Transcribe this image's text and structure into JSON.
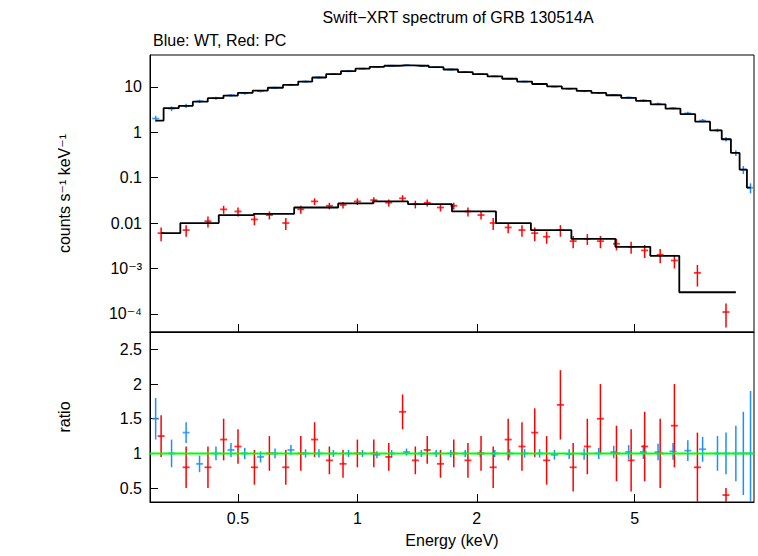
{
  "chart_data": [
    {
      "type": "scatter",
      "title": "Swift−XRT spectrum of GRB 130514A",
      "subtitle": "Blue: WT, Red: PC",
      "ylabel": "counts s⁻¹ keV⁻¹",
      "log": true,
      "grid": false,
      "tick_labels": "y",
      "xlim": [
        0.3,
        10
      ],
      "ylim": [
        4e-05,
        50
      ],
      "xticks": [
        0.5,
        1,
        2,
        5
      ],
      "yticks": [
        {
          "value": 0.0001,
          "label": "10⁻⁴"
        },
        {
          "value": 0.001,
          "label": "10⁻³"
        },
        0.01,
        0.1,
        1,
        10
      ],
      "series": [
        {
          "type": "scatter",
          "marker": "cross",
          "color": "#1e8fff",
          "x": [
            0.31,
            0.34,
            0.37,
            0.4,
            0.44,
            0.48,
            0.52,
            0.57,
            0.62,
            0.68,
            0.74,
            0.8,
            0.87,
            0.95,
            1.03,
            1.12,
            1.22,
            1.33,
            1.45,
            1.58,
            1.72,
            1.87,
            2.04,
            2.22,
            2.42,
            2.64,
            2.88,
            3.14,
            3.42,
            3.73,
            4.06,
            4.43,
            4.83,
            5.26,
            5.73,
            6.25,
            6.81,
            7.42,
            8.09,
            8.5,
            9.0,
            9.4,
            9.8
          ],
          "values": [
            2.0,
            3.3,
            3.8,
            4.8,
            5.6,
            6.5,
            7.2,
            8.0,
            9.5,
            11,
            13,
            16,
            19,
            22,
            25,
            27,
            29,
            30,
            29,
            27,
            24,
            21,
            19,
            17,
            15,
            13,
            11.5,
            10,
            9,
            8,
            7.3,
            6.6,
            5.8,
            5.0,
            4.2,
            3.4,
            2.6,
            1.8,
            1.1,
            0.7,
            0.35,
            0.15,
            0.06
          ],
          "errors": [
            0.3,
            0.4,
            0.4,
            0.4,
            0.4,
            0.4,
            0.5,
            0.5,
            0.5,
            0.6,
            0.7,
            0.8,
            0.9,
            1,
            1,
            1,
            1.2,
            1.2,
            1.2,
            1.1,
            1,
            0.9,
            0.8,
            0.7,
            0.6,
            0.5,
            0.5,
            0.4,
            0.4,
            0.4,
            0.3,
            0.3,
            0.3,
            0.3,
            0.3,
            0.2,
            0.2,
            0.15,
            0.1,
            0.08,
            0.05,
            0.03,
            0.015
          ]
        },
        {
          "type": "line",
          "line_style": "step",
          "color": "#000000",
          "x": [
            0.31,
            0.34,
            0.37,
            0.4,
            0.44,
            0.48,
            0.52,
            0.57,
            0.62,
            0.68,
            0.74,
            0.8,
            0.87,
            0.95,
            1.03,
            1.12,
            1.22,
            1.33,
            1.45,
            1.58,
            1.72,
            1.87,
            2.04,
            2.22,
            2.42,
            2.64,
            2.88,
            3.14,
            3.42,
            3.73,
            4.06,
            4.43,
            4.83,
            5.26,
            5.73,
            6.25,
            6.81,
            7.42,
            8.09,
            8.5,
            9.0,
            9.4,
            9.8
          ],
          "values": [
            1.8,
            3.4,
            3.8,
            4.7,
            5.6,
            6.4,
            7.3,
            8.2,
            9.5,
            11,
            13,
            16,
            19,
            22,
            25,
            27.5,
            29,
            29.5,
            29,
            27,
            24,
            21,
            19,
            17,
            15,
            13,
            11.5,
            10.2,
            9.1,
            8.1,
            7.3,
            6.5,
            5.7,
            4.9,
            4.1,
            3.3,
            2.5,
            1.7,
            1.1,
            0.7,
            0.35,
            0.15,
            0.06
          ]
        },
        {
          "type": "scatter",
          "marker": "cross",
          "color": "#ff0000",
          "x": [
            0.32,
            0.37,
            0.42,
            0.46,
            0.5,
            0.55,
            0.6,
            0.66,
            0.72,
            0.78,
            0.85,
            0.92,
            1.0,
            1.1,
            1.2,
            1.3,
            1.4,
            1.5,
            1.62,
            1.75,
            1.9,
            2.05,
            2.2,
            2.4,
            2.6,
            2.8,
            3.0,
            3.25,
            3.5,
            3.8,
            4.1,
            4.5,
            4.9,
            5.3,
            5.8,
            6.3,
            7.2,
            8.5
          ],
          "values": [
            0.006,
            0.007,
            0.011,
            0.02,
            0.018,
            0.012,
            0.015,
            0.01,
            0.02,
            0.03,
            0.024,
            0.025,
            0.03,
            0.032,
            0.028,
            0.035,
            0.026,
            0.028,
            0.022,
            0.024,
            0.018,
            0.015,
            0.01,
            0.008,
            0.007,
            0.006,
            0.005,
            0.007,
            0.004,
            0.0045,
            0.004,
            0.0035,
            0.003,
            0.0025,
            0.002,
            0.0015,
            0.0008,
            0.00011
          ],
          "errors": [
            0.002,
            0.002,
            0.003,
            0.004,
            0.004,
            0.003,
            0.003,
            0.003,
            0.004,
            0.005,
            0.004,
            0.004,
            0.005,
            0.005,
            0.005,
            0.006,
            0.005,
            0.005,
            0.004,
            0.004,
            0.004,
            0.003,
            0.003,
            0.002,
            0.002,
            0.002,
            0.0015,
            0.002,
            0.0012,
            0.0012,
            0.0012,
            0.001,
            0.0009,
            0.0008,
            0.0007,
            0.0005,
            0.0004,
            6e-05
          ]
        },
        {
          "type": "line",
          "line_style": "step",
          "color": "#000000",
          "x": [
            0.32,
            0.4,
            0.5,
            0.6,
            0.8,
            1.0,
            1.2,
            1.5,
            2.0,
            2.5,
            3,
            4,
            5,
            6,
            7,
            9
          ],
          "values": [
            0.006,
            0.01,
            0.015,
            0.016,
            0.022,
            0.027,
            0.03,
            0.026,
            0.018,
            0.01,
            0.007,
            0.0045,
            0.003,
            0.0019,
            0.0003,
            0.0003
          ]
        }
      ]
    },
    {
      "type": "scatter",
      "xlabel": "Energy (keV)",
      "ylabel": "ratio",
      "log": "x",
      "grid": false,
      "xlim": [
        0.3,
        10
      ],
      "ylim": [
        0.3,
        2.75
      ],
      "xticks": [
        0.5,
        1,
        2,
        5
      ],
      "yticks": [
        0.5,
        1,
        1.5,
        2,
        2.5
      ],
      "series": [
        {
          "type": "scatter",
          "marker": "cross",
          "color": "#1e8fff",
          "x": [
            0.31,
            0.34,
            0.37,
            0.4,
            0.44,
            0.48,
            0.52,
            0.57,
            0.62,
            0.68,
            0.74,
            0.8,
            0.87,
            0.95,
            1.03,
            1.12,
            1.22,
            1.33,
            1.45,
            1.58,
            1.72,
            1.87,
            2.04,
            2.22,
            2.42,
            2.64,
            2.88,
            3.14,
            3.42,
            3.73,
            4.06,
            4.43,
            4.83,
            5.26,
            5.73,
            6.25,
            6.81,
            7.42,
            8.09,
            8.5,
            9.0,
            9.4,
            9.8
          ],
          "values": [
            1.5,
            1.0,
            1.3,
            0.85,
            1.0,
            1.05,
            1.0,
            0.95,
            1.0,
            1.05,
            1.0,
            1.0,
            1.0,
            1.0,
            1.0,
            0.98,
            1.0,
            1.02,
            1.0,
            1.0,
            1.0,
            1.0,
            1.0,
            1.0,
            1.0,
            1.0,
            1.0,
            0.98,
            0.99,
            0.99,
            1.0,
            1.02,
            1.02,
            1.02,
            1.02,
            1.03,
            1.04,
            1.06,
            1.0,
            1.0,
            1.0,
            1.0,
            1.0
          ],
          "errors": [
            0.3,
            0.2,
            0.15,
            0.12,
            0.1,
            0.1,
            0.08,
            0.08,
            0.07,
            0.07,
            0.06,
            0.06,
            0.05,
            0.05,
            0.05,
            0.05,
            0.05,
            0.05,
            0.05,
            0.05,
            0.05,
            0.05,
            0.05,
            0.05,
            0.06,
            0.06,
            0.06,
            0.07,
            0.07,
            0.08,
            0.08,
            0.09,
            0.1,
            0.1,
            0.12,
            0.12,
            0.15,
            0.18,
            0.25,
            0.3,
            0.4,
            0.6,
            0.9
          ]
        },
        {
          "type": "scatter",
          "marker": "cross",
          "color": "#ff0000",
          "x": [
            0.32,
            0.37,
            0.42,
            0.46,
            0.5,
            0.55,
            0.6,
            0.66,
            0.72,
            0.78,
            0.85,
            0.92,
            1.0,
            1.1,
            1.2,
            1.3,
            1.4,
            1.5,
            1.62,
            1.75,
            1.9,
            2.05,
            2.2,
            2.4,
            2.6,
            2.8,
            3.0,
            3.25,
            3.5,
            3.8,
            4.1,
            4.5,
            4.9,
            5.3,
            5.8,
            6.3,
            7.2,
            8.5
          ],
          "values": [
            1.25,
            0.8,
            0.8,
            1.2,
            1.1,
            0.8,
            1.0,
            0.8,
            1.0,
            1.2,
            0.9,
            0.85,
            1.0,
            1.0,
            0.95,
            1.6,
            0.9,
            1.05,
            0.85,
            1.0,
            0.9,
            1.0,
            0.8,
            1.2,
            1.1,
            1.3,
            0.9,
            1.7,
            0.8,
            1.1,
            1.5,
            1.0,
            0.9,
            1.1,
            1.0,
            1.4,
            0.8,
            0.4
          ],
          "errors": [
            0.3,
            0.3,
            0.3,
            0.3,
            0.25,
            0.25,
            0.25,
            0.25,
            0.25,
            0.25,
            0.2,
            0.2,
            0.2,
            0.2,
            0.2,
            0.25,
            0.2,
            0.2,
            0.2,
            0.2,
            0.25,
            0.25,
            0.3,
            0.3,
            0.35,
            0.35,
            0.35,
            0.5,
            0.35,
            0.4,
            0.5,
            0.4,
            0.45,
            0.5,
            0.5,
            0.6,
            0.5,
            0.1
          ]
        },
        {
          "type": "line",
          "color": "#00ff00",
          "x": [
            0.3,
            10
          ],
          "values": [
            1,
            1
          ]
        }
      ]
    }
  ]
}
